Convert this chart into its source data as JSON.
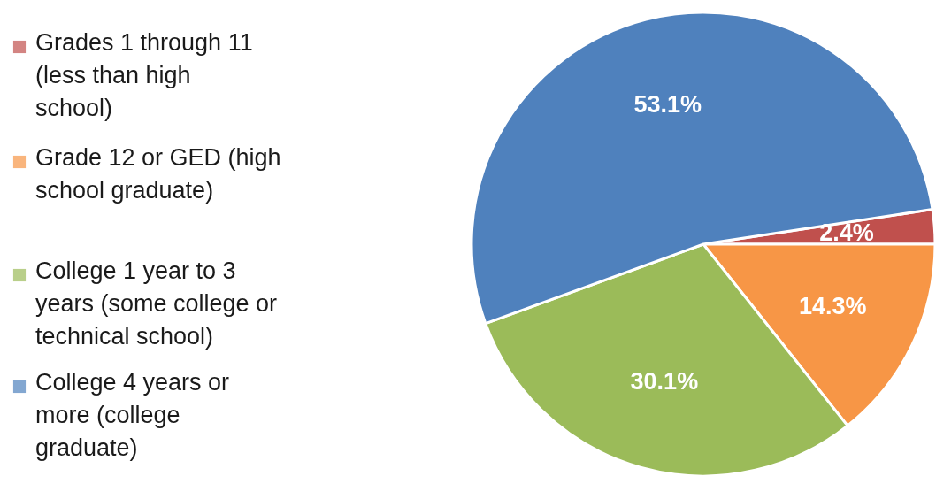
{
  "chart_data": {
    "type": "pie",
    "categories": [
      "Grades 1 through 11 (less than high school)",
      "Grade 12 or GED (high school graduate)",
      "College 1 year to 3 years (some college or technical school)",
      "College 4 years or more (college graduate)"
    ],
    "values": [
      2.4,
      14.3,
      30.1,
      53.1
    ],
    "colors": [
      "#c0504d",
      "#f79646",
      "#9bbb59",
      "#4f81bd"
    ],
    "value_labels": [
      "2.4%",
      "14.3%",
      "30.1%",
      "53.1%"
    ],
    "legend": "left"
  }
}
